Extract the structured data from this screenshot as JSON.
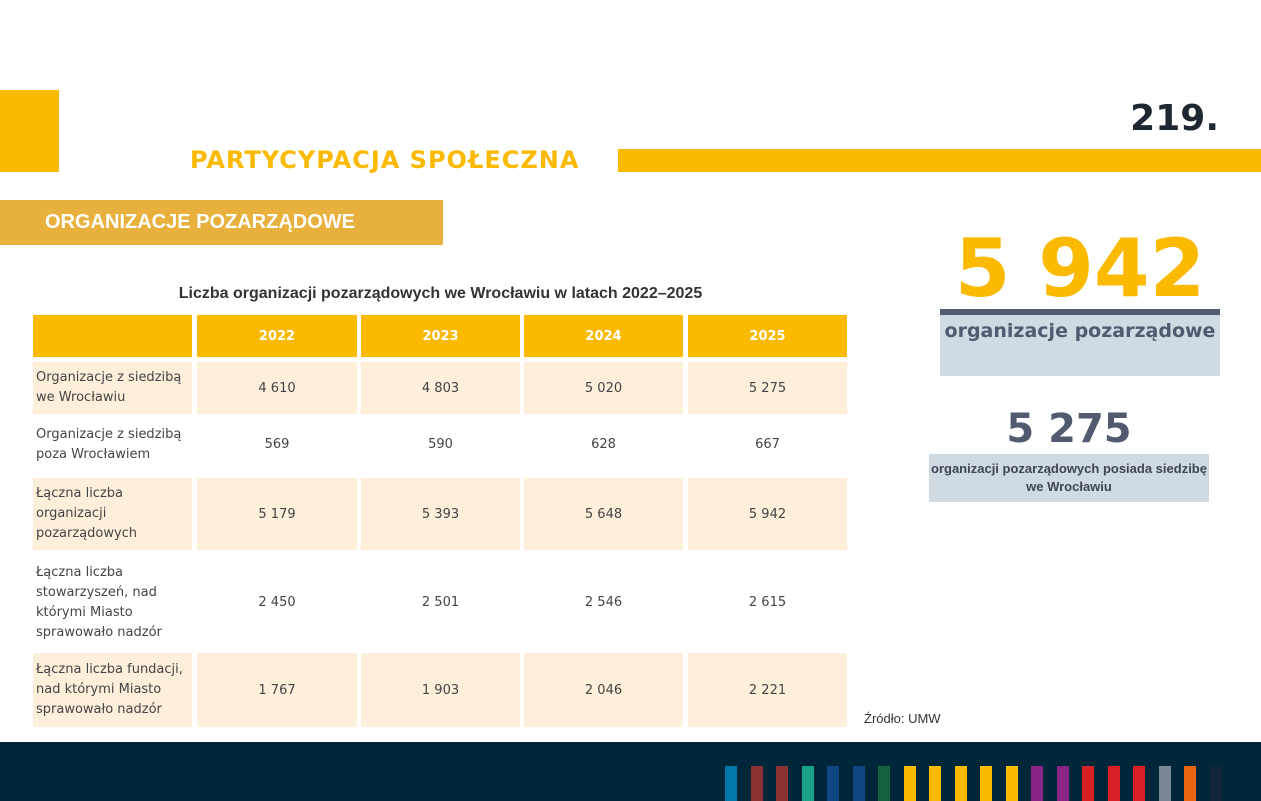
{
  "header": {
    "title": "PARTYCYPACJA SPOŁECZNA",
    "page_number": "219.",
    "section": "ORGANIZACJE POZARZĄDOWE"
  },
  "table": {
    "title": "Liczba organizacji pozarządowych we Wrocławiu w latach 2022–2025",
    "columns": [
      "",
      "2022",
      "2023",
      "2024",
      "2025"
    ],
    "rows": [
      {
        "label": "Organizacje z siedzibą we Wrocławiu",
        "values": [
          "4 610",
          "4 803",
          "5 020",
          "5 275"
        ]
      },
      {
        "label": "Organizacje z siedzibą poza Wrocławiem",
        "values": [
          "569",
          "590",
          "628",
          "667"
        ]
      },
      {
        "label": "Łączna liczba organizacji pozarządowych",
        "values": [
          "5 179",
          "5 393",
          "5 648",
          "5 942"
        ]
      },
      {
        "label": "Łączna liczba stowarzyszeń, nad którymi Miasto sprawowało nadzór",
        "values": [
          "2 450",
          "2 501",
          "2 546",
          "2 615"
        ]
      },
      {
        "label": "Łączna liczba fundacji, nad którymi Miasto sprawowało nadzór",
        "values": [
          "1 767",
          "1 903",
          "2 046",
          "2 221"
        ]
      }
    ]
  },
  "stats": {
    "big_value": "5 942",
    "big_label": "organizacje pozarządowe",
    "mid_value": "5 275",
    "mid_label": "organizacji pozarządowych posiada siedzibę we Wrocławiu"
  },
  "source": "Źródło: UMW",
  "colors": {
    "accent": "#fbb900",
    "footer": "#00263a",
    "stripes": [
      "#0077a8",
      "#8b3333",
      "#8b3333",
      "#1ba38a",
      "#0f4580",
      "#0f4580",
      "#146140",
      "#fbb900",
      "#fbb900",
      "#fbb900",
      "#fbb900",
      "#fbb900",
      "#8a2487",
      "#8a2487",
      "#d71f26",
      "#d71f26",
      "#d71f26",
      "#7b8793",
      "#ea650f",
      "#10243a"
    ]
  }
}
